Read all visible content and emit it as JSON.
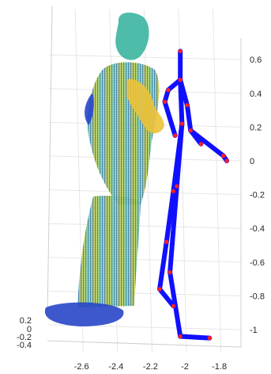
{
  "chart_data": {
    "type": "3d-scatter-with-skeleton",
    "title": "",
    "xlabel": "",
    "ylabel": "",
    "zlabel": "",
    "x_ticks": [
      -2.6,
      -2.4,
      -2.2,
      -2,
      -1.8
    ],
    "x_tick_labels": [
      "-2.6",
      "-2.4",
      "-2.2",
      "-2",
      "-1.8"
    ],
    "z_ticks": [
      0.6,
      0.4,
      0.2,
      0,
      -0.2,
      -0.4,
      -0.6,
      -0.8,
      -1
    ],
    "z_tick_labels": [
      "0.6",
      "0.4",
      "0.2",
      "0",
      "-0.2",
      "-0.4",
      "-0.6",
      "-0.8",
      "-1"
    ],
    "y_ticks": [
      0.2,
      0,
      -0.2,
      -0.4
    ],
    "y_tick_labels": [
      "0.2",
      "0",
      "-0.2",
      "-0.4"
    ],
    "xlim": [
      -2.75,
      -1.7
    ],
    "zlim": [
      -1.1,
      0.7
    ],
    "grid": true,
    "colors": {
      "skeleton": "#1010ff",
      "joint": "#ff2020",
      "pointcloud_low": "#2846c8",
      "pointcloud_mid": "#3cb4a0",
      "pointcloud_high": "#f0c828"
    },
    "skeleton": {
      "joints": [
        {
          "name": "head_top",
          "x": -1.99,
          "z": 0.65
        },
        {
          "name": "neck",
          "x": -1.99,
          "z": 0.48
        },
        {
          "name": "right_shoulder",
          "x": -2.06,
          "z": 0.42
        },
        {
          "name": "right_elbow",
          "x": -2.08,
          "z": 0.35
        },
        {
          "name": "right_hand",
          "x": -2.02,
          "z": 0.15
        },
        {
          "name": "left_shoulder",
          "x": -1.95,
          "z": 0.33
        },
        {
          "name": "left_elbow",
          "x": -1.93,
          "z": 0.18
        },
        {
          "name": "left_hand",
          "x": -1.87,
          "z": 0.1
        },
        {
          "name": "spine",
          "x": -1.98,
          "z": 0.22
        },
        {
          "name": "pelvis_right",
          "x": -2.03,
          "z": -0.18
        },
        {
          "name": "pelvis_left",
          "x": -2.01,
          "z": -0.15
        },
        {
          "name": "right_knee",
          "x": -2.07,
          "z": -0.48
        },
        {
          "name": "right_ankle",
          "x": -2.11,
          "z": -0.76
        },
        {
          "name": "right_toe",
          "x": -2.03,
          "z": -0.86
        },
        {
          "name": "left_knee",
          "x": -2.05,
          "z": -0.66
        },
        {
          "name": "left_ankle",
          "x": -1.99,
          "z": -1.04
        },
        {
          "name": "left_toe",
          "x": -1.82,
          "z": -1.05
        },
        {
          "name": "right_foot_ext",
          "x": -1.74,
          "z": 0.03
        },
        {
          "name": "right_foot_tip",
          "x": -1.72,
          "z": 0.0
        }
      ],
      "bones": [
        [
          0,
          1
        ],
        [
          1,
          2
        ],
        [
          2,
          3
        ],
        [
          1,
          5
        ],
        [
          5,
          6
        ],
        [
          6,
          7
        ],
        [
          3,
          4
        ],
        [
          1,
          8
        ],
        [
          8,
          9
        ],
        [
          8,
          10
        ],
        [
          9,
          11
        ],
        [
          11,
          12
        ],
        [
          12,
          13
        ],
        [
          10,
          14
        ],
        [
          14,
          15
        ],
        [
          15,
          16
        ],
        [
          6,
          17
        ],
        [
          17,
          18
        ]
      ]
    }
  }
}
